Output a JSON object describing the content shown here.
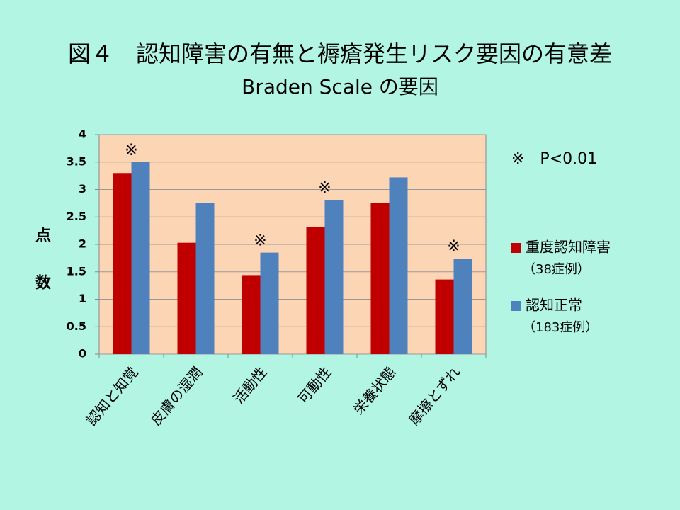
{
  "chart_data": {
    "type": "bar",
    "title": "図４　認知障害の有無と褥瘡発生リスク要因の有意差",
    "subtitle": "Braden Scale の要因",
    "y_label": "点数",
    "categories": [
      "認知と知覚",
      "皮膚の湿潤",
      "活動性",
      "可動性",
      "栄養状態",
      "摩擦とずれ"
    ],
    "series": [
      {
        "name": "重度認知障害",
        "sample_label": "（38症例）",
        "color": "#c00000",
        "values": [
          3.3,
          2.03,
          1.44,
          2.32,
          2.76,
          1.36
        ]
      },
      {
        "name": "認知正常",
        "sample_label": "（183症例）",
        "color": "#4f81bd",
        "values": [
          3.5,
          2.76,
          1.85,
          2.81,
          3.22,
          1.74
        ]
      }
    ],
    "significance": [
      "※",
      null,
      "※",
      "※",
      null,
      "※"
    ],
    "note": "※　P<0.01",
    "ylim": [
      0,
      4
    ],
    "yticks": [
      0,
      0.5,
      1,
      1.5,
      2,
      2.5,
      3,
      3.5,
      4
    ],
    "grid": true
  }
}
